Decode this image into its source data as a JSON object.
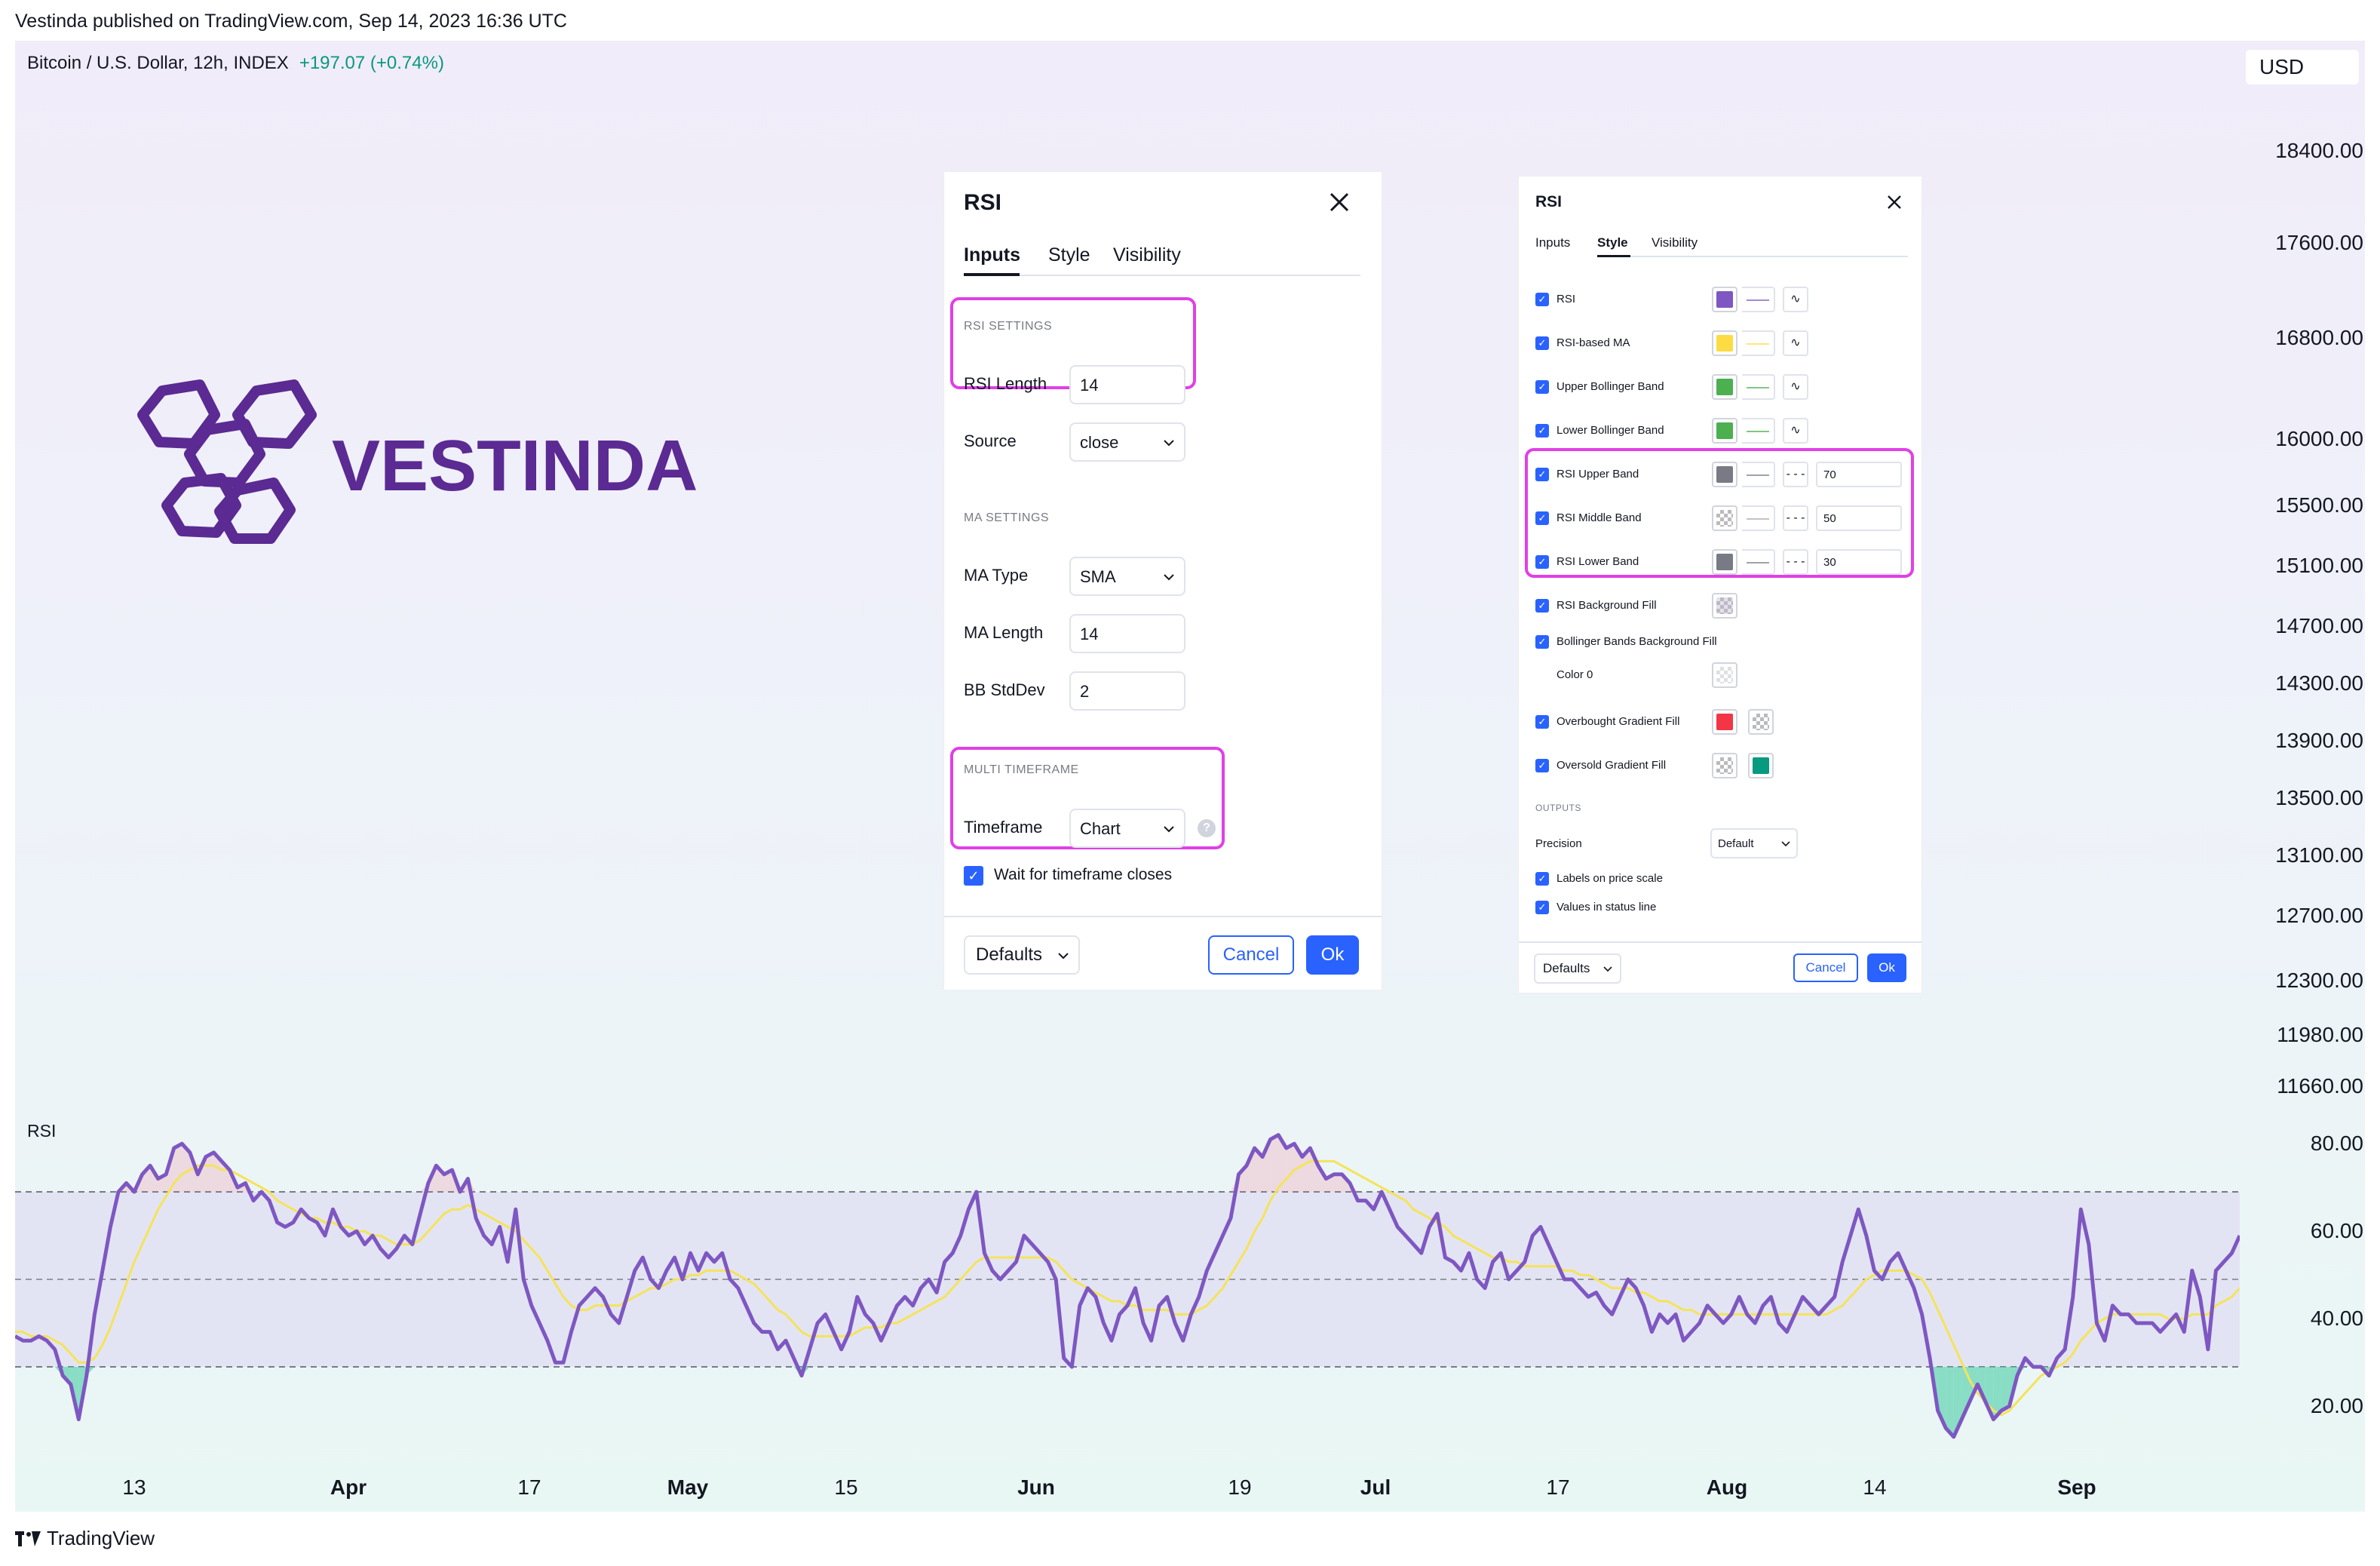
{
  "header": {
    "published": "Vestinda published on TradingView.com, Sep 14, 2023 16:36 UTC"
  },
  "symbol": {
    "name": "Bitcoin / U.S. Dollar, 12h, INDEX",
    "change": "+197.07 (+0.74%)",
    "currency": "USD"
  },
  "price_scale": [
    "18400.00",
    "17600.00",
    "16800.00",
    "16000.00",
    "15500.00",
    "15100.00",
    "14700.00",
    "14300.00",
    "13900.00",
    "13500.00",
    "13100.00",
    "12700.00",
    "12300.00",
    "11980.00",
    "11660.00"
  ],
  "logo": {
    "text": "VESTINDA",
    "color": "#5b2a92"
  },
  "rsi_pane": {
    "label": "RSI",
    "scale": [
      "80.00",
      "60.00",
      "40.00",
      "20.00"
    ],
    "upper_band": 70,
    "middle_band": 50,
    "lower_band": 30
  },
  "time_axis": [
    {
      "label": "13",
      "bold": false
    },
    {
      "label": "Apr",
      "bold": true
    },
    {
      "label": "17",
      "bold": false
    },
    {
      "label": "May",
      "bold": true
    },
    {
      "label": "15",
      "bold": false
    },
    {
      "label": "Jun",
      "bold": true
    },
    {
      "label": "19",
      "bold": false
    },
    {
      "label": "Jul",
      "bold": true
    },
    {
      "label": "17",
      "bold": false
    },
    {
      "label": "Aug",
      "bold": true
    },
    {
      "label": "14",
      "bold": false
    },
    {
      "label": "Sep",
      "bold": true
    }
  ],
  "footer": {
    "brand": "TradingView"
  },
  "chart_data": {
    "type": "line",
    "title": "RSI",
    "ylim": [
      10,
      90
    ],
    "series": [
      {
        "name": "RSI",
        "color": "#7e57c2",
        "values": [
          37,
          36,
          36,
          37,
          36,
          34,
          28,
          26,
          18,
          28,
          42,
          52,
          62,
          70,
          72,
          70,
          74,
          76,
          73,
          74,
          80,
          81,
          79,
          74,
          78,
          79,
          77,
          75,
          71,
          72,
          68,
          70,
          68,
          63,
          62,
          63,
          66,
          64,
          63,
          60,
          66,
          62,
          60,
          61,
          58,
          60,
          57,
          55,
          57,
          60,
          58,
          65,
          72,
          76,
          74,
          75,
          70,
          73,
          64,
          60,
          58,
          62,
          54,
          66,
          50,
          44,
          40,
          36,
          31,
          31,
          38,
          44,
          46,
          48,
          46,
          42,
          40,
          46,
          52,
          55,
          50,
          48,
          52,
          55,
          50,
          56,
          52,
          56,
          54,
          56,
          50,
          48,
          44,
          40,
          38,
          38,
          34,
          36,
          32,
          28,
          34,
          40,
          42,
          38,
          34,
          38,
          46,
          42,
          40,
          36,
          40,
          44,
          46,
          44,
          48,
          50,
          47,
          54,
          56,
          60,
          66,
          70,
          56,
          52,
          50,
          52,
          54,
          60,
          58,
          56,
          54,
          50,
          32,
          30,
          44,
          48,
          46,
          40,
          36,
          42,
          44,
          48,
          40,
          36,
          44,
          46,
          40,
          36,
          42,
          46,
          52,
          56,
          60,
          64,
          74,
          76,
          80,
          78,
          82,
          83,
          80,
          81,
          78,
          80,
          76,
          73,
          74,
          74,
          72,
          68,
          68,
          66,
          70,
          66,
          62,
          60,
          58,
          56,
          62,
          65,
          55,
          54,
          52,
          56,
          50,
          48,
          54,
          56,
          50,
          52,
          54,
          60,
          62,
          58,
          54,
          50,
          50,
          48,
          46,
          47,
          44,
          42,
          46,
          50,
          48,
          44,
          38,
          42,
          40,
          42,
          36,
          38,
          40,
          44,
          42,
          40,
          42,
          46,
          42,
          40,
          44,
          46,
          40,
          38,
          42,
          46,
          44,
          42,
          44,
          46,
          54,
          60,
          66,
          60,
          52,
          50,
          54,
          56,
          52,
          48,
          42,
          32,
          20,
          16,
          14,
          18,
          22,
          26,
          22,
          18,
          20,
          21,
          28,
          32,
          30,
          30,
          28,
          32,
          34,
          46,
          66,
          58,
          40,
          36,
          44,
          42,
          42,
          40,
          40,
          40,
          38,
          40,
          42,
          38,
          52,
          46,
          34,
          52,
          54,
          56,
          60
        ]
      },
      {
        "name": "RSI-based MA",
        "color": "#f5e35a",
        "values": [
          38,
          38,
          37,
          37,
          37,
          36,
          35,
          33,
          31,
          31,
          32,
          35,
          39,
          44,
          49,
          54,
          58,
          62,
          66,
          69,
          72,
          74,
          75,
          76,
          76,
          76,
          75,
          75,
          74,
          73,
          72,
          71,
          70,
          68,
          67,
          66,
          65,
          64,
          64,
          63,
          63,
          62,
          62,
          61,
          61,
          60,
          60,
          59,
          58,
          58,
          58,
          59,
          61,
          63,
          65,
          66,
          66,
          67,
          66,
          65,
          64,
          63,
          62,
          61,
          59,
          57,
          55,
          52,
          49,
          46,
          44,
          43,
          43,
          44,
          44,
          44,
          44,
          45,
          46,
          47,
          48,
          48,
          49,
          50,
          50,
          51,
          51,
          52,
          52,
          52,
          52,
          51,
          50,
          49,
          47,
          45,
          43,
          42,
          40,
          38,
          37,
          37,
          37,
          37,
          37,
          37,
          38,
          39,
          39,
          39,
          40,
          40,
          41,
          42,
          43,
          44,
          45,
          46,
          48,
          50,
          52,
          54,
          55,
          55,
          55,
          55,
          55,
          55,
          55,
          55,
          55,
          54,
          52,
          50,
          49,
          48,
          47,
          46,
          45,
          45,
          44,
          44,
          43,
          43,
          43,
          43,
          42,
          42,
          42,
          43,
          44,
          46,
          48,
          51,
          54,
          57,
          61,
          64,
          68,
          71,
          73,
          75,
          76,
          77,
          77,
          77,
          77,
          76,
          75,
          74,
          73,
          72,
          71,
          70,
          69,
          68,
          66,
          65,
          64,
          63,
          62,
          60,
          59,
          58,
          57,
          56,
          55,
          55,
          54,
          54,
          53,
          53,
          53,
          53,
          53,
          52,
          52,
          51,
          51,
          50,
          49,
          48,
          48,
          48,
          47,
          47,
          46,
          45,
          45,
          44,
          43,
          43,
          42,
          42,
          42,
          42,
          42,
          42,
          42,
          42,
          42,
          42,
          42,
          42,
          42,
          42,
          42,
          42,
          42,
          43,
          44,
          46,
          48,
          50,
          51,
          52,
          52,
          52,
          52,
          51,
          50,
          47,
          43,
          39,
          35,
          31,
          27,
          24,
          22,
          20,
          19,
          20,
          22,
          24,
          26,
          28,
          29,
          30,
          31,
          33,
          36,
          38,
          40,
          41,
          42,
          42,
          42,
          42,
          42,
          42,
          42,
          41,
          41,
          41,
          42,
          42,
          42,
          44,
          45,
          46,
          48
        ]
      }
    ]
  },
  "dialog_inputs": {
    "title": "RSI",
    "tabs": [
      "Inputs",
      "Style",
      "Visibility"
    ],
    "active_tab": "Inputs",
    "rsi_settings": {
      "heading": "RSI SETTINGS",
      "length_label": "RSI Length",
      "length_value": "14",
      "source_label": "Source",
      "source_value": "close"
    },
    "ma_settings": {
      "heading": "MA SETTINGS",
      "type_label": "MA Type",
      "type_value": "SMA",
      "length_label": "MA Length",
      "length_value": "14",
      "stddev_label": "BB StdDev",
      "stddev_value": "2"
    },
    "multi_timeframe": {
      "heading": "MULTI TIMEFRAME",
      "timeframe_label": "Timeframe",
      "timeframe_value": "Chart",
      "wait_label": "Wait for timeframe closes",
      "wait_checked": true
    },
    "footer": {
      "defaults": "Defaults",
      "cancel": "Cancel",
      "ok": "Ok"
    }
  },
  "dialog_style": {
    "title": "RSI",
    "tabs": [
      "Inputs",
      "Style",
      "Visibility"
    ],
    "active_tab": "Style",
    "rows": [
      {
        "label": "RSI",
        "color": "#7e57c2",
        "style": "line",
        "plot": true
      },
      {
        "label": "RSI-based MA",
        "color": "#fddc43",
        "style": "line",
        "plot": true
      },
      {
        "label": "Upper Bollinger Band",
        "color": "#4caf50",
        "style": "line",
        "plot": true
      },
      {
        "label": "Lower Bollinger Band",
        "color": "#4caf50",
        "style": "line",
        "plot": true
      },
      {
        "label": "RSI Upper Band",
        "color": "#787b86",
        "style": "dashed",
        "value": "70"
      },
      {
        "label": "RSI Middle Band",
        "color": "checker",
        "style": "dashed",
        "value": "50"
      },
      {
        "label": "RSI Lower Band",
        "color": "#787b86",
        "style": "dashed",
        "value": "30"
      },
      {
        "label": "RSI Background Fill",
        "color": "checker-purple"
      },
      {
        "label": "Bollinger Bands Background Fill",
        "color": ""
      },
      {
        "label": "Color 0",
        "color": "checker-light",
        "nocheck": true
      },
      {
        "label": "Overbought Gradient Fill",
        "color": "#f23645",
        "color2": "checker"
      },
      {
        "label": "Oversold Gradient Fill",
        "color": "checker",
        "color2": "#089981"
      }
    ],
    "outputs": {
      "heading": "OUTPUTS",
      "precision_label": "Precision",
      "precision_value": "Default",
      "labels_price_scale": "Labels on price scale",
      "values_status_line": "Values in status line"
    },
    "footer": {
      "defaults": "Defaults",
      "cancel": "Cancel",
      "ok": "Ok"
    }
  }
}
